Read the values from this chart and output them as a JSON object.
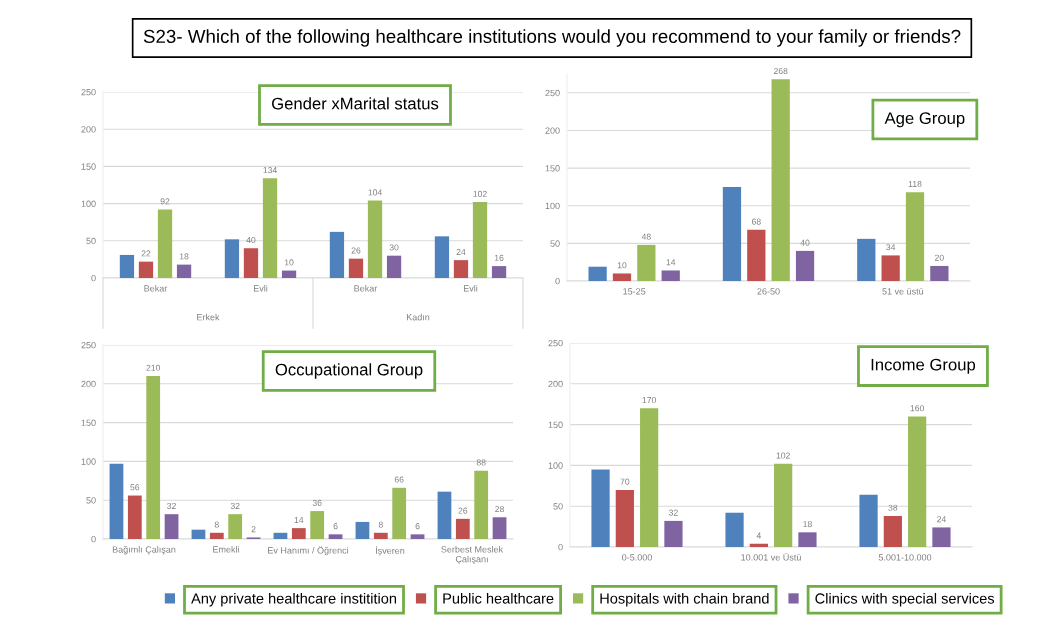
{
  "chart_data": [
    {
      "type": "other",
      "title": "S23- Which of the following healthcare institutions would you recommend to your family or friends?"
    },
    {
      "type": "bar",
      "title": "Gender xMarital status",
      "categories": [
        "Bekar",
        "Evli",
        "Bekar",
        "Evli"
      ],
      "annotations": [
        "Erkek",
        "Kadın"
      ],
      "ylim": [
        0,
        250
      ],
      "yticks": [
        0,
        50,
        100,
        150,
        200,
        250
      ],
      "grid": "y",
      "series": [
        {
          "color": "#4f81bd",
          "values": [
            31,
            52,
            62,
            56
          ]
        },
        {
          "color": "#c0504d",
          "values": [
            22,
            40,
            26,
            24
          ],
          "value_labels": [
            "22",
            "40",
            "26",
            "24"
          ]
        },
        {
          "color": "#9bbb59",
          "values": [
            92,
            134,
            104,
            102
          ],
          "value_labels": [
            "92",
            "134",
            "104",
            "102"
          ]
        },
        {
          "color": "#8064a2",
          "values": [
            18,
            10,
            30,
            16
          ],
          "value_labels": [
            "18",
            "10",
            "30",
            "16"
          ]
        }
      ]
    },
    {
      "type": "bar",
      "title": "Age Group",
      "categories": [
        "15-25",
        "26-50",
        "51 ve üstü"
      ],
      "ylim": [
        0,
        275
      ],
      "yticks": [
        0,
        50,
        100,
        150,
        200,
        250
      ],
      "grid": "y",
      "series": [
        {
          "color": "#4f81bd",
          "values": [
            19,
            125,
            56
          ]
        },
        {
          "color": "#c0504d",
          "values": [
            10,
            68,
            34
          ],
          "value_labels": [
            "10",
            "68",
            "34"
          ]
        },
        {
          "color": "#9bbb59",
          "values": [
            48,
            268,
            118
          ],
          "value_labels": [
            "48",
            "268",
            "118"
          ]
        },
        {
          "color": "#8064a2",
          "values": [
            14,
            40,
            20
          ],
          "value_labels": [
            "14",
            "40",
            "20"
          ]
        }
      ]
    },
    {
      "type": "bar",
      "title": "Occupational Group",
      "categories": [
        "Bağımlı Çalışan",
        "Emekli",
        "Ev Hanımı / Öğrenci",
        "İşveren",
        "Serbest Meslek\nÇalışanı"
      ],
      "ylim": [
        0,
        250
      ],
      "yticks": [
        0,
        50,
        100,
        150,
        200,
        250
      ],
      "grid": "y",
      "series": [
        {
          "color": "#4f81bd",
          "values": [
            97,
            12,
            8,
            22,
            61
          ]
        },
        {
          "color": "#c0504d",
          "values": [
            56,
            8,
            14,
            8,
            26
          ],
          "value_labels": [
            "56",
            "8",
            "14",
            "8",
            "26"
          ]
        },
        {
          "color": "#9bbb59",
          "values": [
            210,
            32,
            36,
            66,
            88
          ],
          "value_labels": [
            "210",
            "32",
            "36",
            "66",
            "88"
          ]
        },
        {
          "color": "#8064a2",
          "values": [
            32,
            2,
            6,
            6,
            28
          ],
          "value_labels": [
            "32",
            "2",
            "6",
            "6",
            "28"
          ]
        }
      ]
    },
    {
      "type": "bar",
      "title": "Income Group",
      "categories": [
        "0-5.000",
        "10.001 ve Üstü",
        "5.001-10.000"
      ],
      "ylim": [
        0,
        250
      ],
      "yticks": [
        0,
        50,
        100,
        150,
        200,
        250
      ],
      "grid": "y",
      "legend": "bottom",
      "series": [
        {
          "name": "Any private healthcare institition",
          "color": "#4f81bd",
          "values": [
            95,
            42,
            64
          ]
        },
        {
          "name": "Public healthcare",
          "color": "#c0504d",
          "values": [
            70,
            4,
            38
          ],
          "value_labels": [
            "70",
            "4",
            "38"
          ]
        },
        {
          "name": "Hospitals with chain brand",
          "color": "#9bbb59",
          "values": [
            170,
            102,
            160
          ],
          "value_labels": [
            "170",
            "102",
            "160"
          ]
        },
        {
          "name": "Clinics with special services",
          "color": "#8064a2",
          "values": [
            32,
            18,
            24
          ],
          "value_labels": [
            "32",
            "18",
            "24"
          ]
        }
      ]
    }
  ]
}
